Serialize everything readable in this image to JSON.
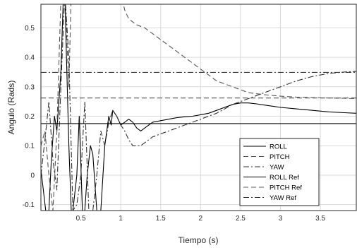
{
  "chart_data": {
    "type": "line",
    "xlabel": "Tiempo (s)",
    "ylabel": "Angulo (Rads)",
    "xlim": [
      0,
      3.95
    ],
    "ylim": [
      -0.12,
      0.58
    ],
    "grid": true,
    "legend_position": "bottom-right",
    "xticks": [
      {
        "value": 0.5,
        "label": "0.5"
      },
      {
        "value": 1,
        "label": "1"
      },
      {
        "value": 1.5,
        "label": "1.5"
      },
      {
        "value": 2,
        "label": "2"
      },
      {
        "value": 2.5,
        "label": "2.5"
      },
      {
        "value": 3,
        "label": "3"
      },
      {
        "value": 3.5,
        "label": "3.5"
      }
    ],
    "yticks": [
      {
        "value": -0.1,
        "label": "-0.1"
      },
      {
        "value": 0,
        "label": "0"
      },
      {
        "value": 0.1,
        "label": "0.1"
      },
      {
        "value": 0.2,
        "label": "0.2"
      },
      {
        "value": 0.3,
        "label": "0.3"
      },
      {
        "value": 0.4,
        "label": "0.4"
      },
      {
        "value": 0.5,
        "label": "0.5"
      }
    ],
    "series": [
      {
        "name": "ROLL",
        "style": "solid",
        "color": "#000000",
        "x": [
          0,
          0.03,
          0.06,
          0.1,
          0.13,
          0.17,
          0.2,
          0.25,
          0.28,
          0.3,
          0.32,
          0.35,
          0.38,
          0.4,
          0.45,
          0.48,
          0.52,
          0.55,
          0.58,
          0.62,
          0.65,
          0.7,
          0.75,
          0.8,
          0.85,
          0.88,
          0.9,
          0.95,
          1.0,
          1.05,
          1.1,
          1.15,
          1.2,
          1.25,
          1.3,
          1.4,
          1.5,
          1.6,
          1.7,
          1.8,
          1.9,
          2.0,
          2.1,
          2.2,
          2.3,
          2.4,
          2.5,
          2.6,
          2.7,
          2.8,
          2.9,
          3.0,
          3.2,
          3.4,
          3.6,
          3.8,
          3.95
        ],
        "y": [
          0.02,
          -0.05,
          -0.12,
          -0.12,
          0.05,
          0.2,
          0.15,
          0.35,
          0.6,
          0.62,
          0.4,
          0.1,
          -0.12,
          -0.12,
          0.0,
          0.2,
          -0.12,
          -0.12,
          0.0,
          0.1,
          0.07,
          -0.12,
          -0.12,
          0.1,
          0.2,
          0.17,
          0.22,
          0.2,
          0.17,
          0.18,
          0.19,
          0.18,
          0.16,
          0.15,
          0.16,
          0.18,
          0.185,
          0.19,
          0.195,
          0.198,
          0.2,
          0.205,
          0.21,
          0.22,
          0.23,
          0.24,
          0.245,
          0.245,
          0.242,
          0.238,
          0.234,
          0.23,
          0.225,
          0.22,
          0.215,
          0.212,
          0.21
        ]
      },
      {
        "name": "PITCH",
        "style": "dashed",
        "color": "#555555",
        "x": [
          0,
          0.05,
          0.1,
          0.15,
          0.2,
          0.25,
          0.3,
          0.35,
          0.38,
          0.42,
          0.46,
          0.5,
          0.52,
          0.6,
          0.8,
          1.0,
          1.05,
          1.1,
          1.2,
          1.3,
          1.4,
          1.5,
          1.6,
          1.7,
          1.8,
          1.9,
          2.0,
          2.1,
          2.2,
          2.4,
          2.6,
          2.8,
          3.0,
          3.2,
          3.4,
          3.6,
          3.8,
          3.95
        ],
        "y": [
          0.1,
          0.15,
          0.0,
          -0.12,
          0.15,
          0.6,
          0.62,
          0.3,
          0.62,
          0.62,
          0.62,
          0.62,
          0.62,
          0.62,
          0.62,
          0.62,
          0.56,
          0.53,
          0.51,
          0.5,
          0.48,
          0.46,
          0.44,
          0.42,
          0.4,
          0.38,
          0.36,
          0.34,
          0.32,
          0.3,
          0.28,
          0.273,
          0.268,
          0.265,
          0.263,
          0.262,
          0.261,
          0.26
        ]
      },
      {
        "name": "YAW",
        "style": "dashdot",
        "color": "#333333",
        "x": [
          0,
          0.05,
          0.1,
          0.15,
          0.2,
          0.25,
          0.3,
          0.35,
          0.4,
          0.45,
          0.5,
          0.55,
          0.6,
          0.65,
          0.7,
          0.75,
          0.8,
          0.85,
          0.9,
          0.95,
          1.0,
          1.05,
          1.1,
          1.15,
          1.2,
          1.25,
          1.3,
          1.35,
          1.4,
          1.5,
          1.6,
          1.7,
          1.8,
          1.9,
          2.0,
          2.1,
          2.2,
          2.3,
          2.4,
          2.5,
          2.6,
          2.8,
          3.0,
          3.2,
          3.4,
          3.6,
          3.8,
          3.95
        ],
        "y": [
          0.0,
          0.12,
          0.25,
          0.05,
          -0.05,
          0.3,
          0.62,
          0.4,
          -0.12,
          -0.1,
          0.0,
          0.25,
          -0.12,
          -0.12,
          0.0,
          0.15,
          0.1,
          0.18,
          0.22,
          0.2,
          0.17,
          0.15,
          0.12,
          0.1,
          0.1,
          0.1,
          0.11,
          0.12,
          0.13,
          0.14,
          0.15,
          0.16,
          0.17,
          0.18,
          0.19,
          0.2,
          0.21,
          0.225,
          0.24,
          0.25,
          0.26,
          0.28,
          0.3,
          0.32,
          0.335,
          0.345,
          0.35,
          0.352
        ]
      },
      {
        "name": "ROLL Ref",
        "style": "solid",
        "color": "#000000",
        "x": [
          0,
          3.95
        ],
        "y": [
          0.175,
          0.175
        ]
      },
      {
        "name": "PITCH Ref",
        "style": "dashed",
        "color": "#555555",
        "x": [
          0,
          3.95
        ],
        "y": [
          0.262,
          0.262
        ]
      },
      {
        "name": "YAW Ref",
        "style": "dashdot",
        "color": "#333333",
        "x": [
          0,
          3.95
        ],
        "y": [
          0.349,
          0.349
        ]
      }
    ]
  }
}
